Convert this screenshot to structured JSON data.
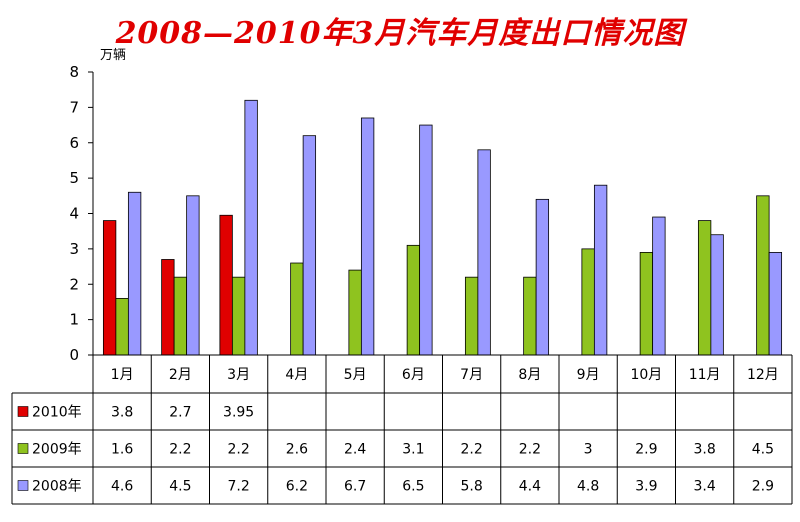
{
  "chart_data": {
    "type": "bar",
    "title": "2008—2010年3月汽车月度出口情况图",
    "unit_label": "万辆",
    "categories": [
      "1月",
      "2月",
      "3月",
      "4月",
      "5月",
      "6月",
      "7月",
      "8月",
      "9月",
      "10月",
      "11月",
      "12月"
    ],
    "ylim": [
      0,
      8
    ],
    "yticks": [
      0,
      1,
      2,
      3,
      4,
      5,
      6,
      7,
      8
    ],
    "grid": false,
    "legend": "data-table-rows",
    "series": [
      {
        "name": "2010年",
        "color": "#e00000",
        "values": [
          3.8,
          2.7,
          3.95,
          null,
          null,
          null,
          null,
          null,
          null,
          null,
          null,
          null
        ]
      },
      {
        "name": "2009年",
        "color": "#8fc31f",
        "values": [
          1.6,
          2.2,
          2.2,
          2.6,
          2.4,
          3.1,
          2.2,
          2.2,
          3,
          2.9,
          3.8,
          4.5
        ]
      },
      {
        "name": "2008年",
        "color": "#9999ff",
        "values": [
          4.6,
          4.5,
          7.2,
          6.2,
          6.7,
          6.5,
          5.8,
          4.4,
          4.8,
          3.9,
          3.4,
          2.9
        ]
      }
    ]
  }
}
